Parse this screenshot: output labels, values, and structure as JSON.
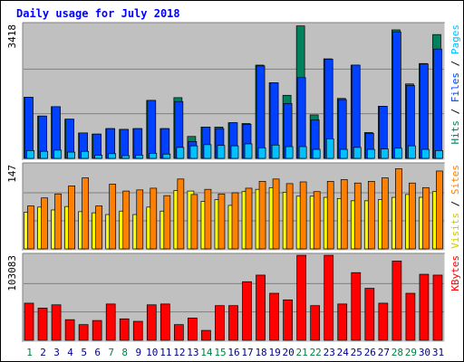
{
  "chart_data": {
    "type": "bar",
    "title": "Daily usage for July 2018",
    "categories": [
      "1",
      "2",
      "3",
      "4",
      "5",
      "6",
      "7",
      "8",
      "9",
      "10",
      "11",
      "12",
      "13",
      "14",
      "15",
      "16",
      "17",
      "18",
      "19",
      "20",
      "21",
      "22",
      "23",
      "24",
      "25",
      "26",
      "27",
      "28",
      "29",
      "30",
      "31"
    ],
    "weekend_days": [
      "1",
      "7",
      "8",
      "14",
      "15",
      "21",
      "22",
      "28",
      "29"
    ],
    "panels": [
      {
        "name": "hits-files-pages",
        "max_label": "3418",
        "ylim": [
          0,
          3418
        ],
        "legend": [
          {
            "text": "Hits",
            "color": "#00805c"
          },
          {
            "text": " / ",
            "color": "#000000"
          },
          {
            "text": "Files",
            "color": "#0040ff"
          },
          {
            "text": " / ",
            "color": "#000000"
          },
          {
            "text": "Pages",
            "color": "#00c0ff"
          }
        ],
        "series": [
          {
            "name": "Hits",
            "color": "#00805c",
            "values": [
              1560,
              1080,
              1320,
              1000,
              650,
              620,
              760,
              740,
              760,
              1480,
              760,
              1550,
              560,
              800,
              800,
              910,
              890,
              2380,
              1930,
              1610,
              3380,
              1110,
              2540,
              1530,
              2380,
              660,
              1330,
              3280,
              1900,
              2420,
              3160
            ]
          },
          {
            "name": "Files",
            "color": "#0040ff",
            "values": [
              1560,
              1080,
              1320,
              1000,
              650,
              620,
              760,
              740,
              760,
              1480,
              760,
              1450,
              430,
              800,
              760,
              910,
              870,
              2360,
              1930,
              1400,
              2060,
              980,
              2530,
              1500,
              2380,
              640,
              1330,
              3230,
              1860,
              2410,
              2790
            ]
          },
          {
            "name": "Pages",
            "color": "#00c0ff",
            "values": [
              200,
              180,
              210,
              160,
              180,
              80,
              120,
              70,
              80,
              130,
              110,
              280,
              320,
              350,
              330,
              320,
              370,
              270,
              340,
              300,
              300,
              230,
              500,
              230,
              280,
              230,
              240,
              260,
              320,
              230,
              200
            ]
          }
        ]
      },
      {
        "name": "visits-sites",
        "max_label": "147",
        "ylim": [
          0,
          147
        ],
        "legend": [
          {
            "text": "Visits",
            "color": "#cccc00"
          },
          {
            "text": " / ",
            "color": "#000000"
          },
          {
            "text": "Sites",
            "color": "#ff8000"
          }
        ],
        "series": [
          {
            "name": "Visits",
            "color": "#ffff00",
            "values": [
              64,
              73,
              68,
              74,
              65,
              63,
              60,
              66,
              60,
              73,
              66,
              102,
              101,
              83,
              86,
              76,
              100,
              104,
              107,
              99,
              92,
              92,
              90,
              88,
              84,
              84,
              86,
              90,
              95,
              90,
              100
            ]
          },
          {
            "name": "Sites",
            "color": "#ff8000",
            "values": [
              75,
              89,
              96,
              110,
              124,
              75,
              113,
              101,
              103,
              106,
              93,
              122,
              95,
              104,
              96,
              98,
              106,
              118,
              122,
              114,
              117,
              100,
              118,
              121,
              115,
              118,
              124,
              140,
              115,
              107,
              136
            ]
          }
        ]
      },
      {
        "name": "kbytes",
        "max_label": "103083",
        "ylim": [
          0,
          103083
        ],
        "legend": [
          {
            "text": "KBytes",
            "color": "#ff0000"
          }
        ],
        "series": [
          {
            "name": "KBytes",
            "color": "#ff0000",
            "values": [
              45000,
              39000,
              43000,
              25000,
              19000,
              24000,
              44000,
              26000,
              23000,
              43000,
              44000,
              19000,
              27000,
              12000,
              42000,
              42000,
              71000,
              79000,
              57000,
              49000,
              103000,
              42000,
              103000,
              44000,
              82000,
              63000,
              45000,
              96000,
              57000,
              80000,
              79000
            ]
          }
        ]
      }
    ]
  },
  "colors": {
    "frame": "#000000",
    "plot_bg": "#c0c0c0",
    "outer_bg": "#ffffff",
    "title": "#0000ff",
    "weekday_label": "#00008b",
    "weekend_label": "#008040",
    "gridline": "#808080"
  }
}
